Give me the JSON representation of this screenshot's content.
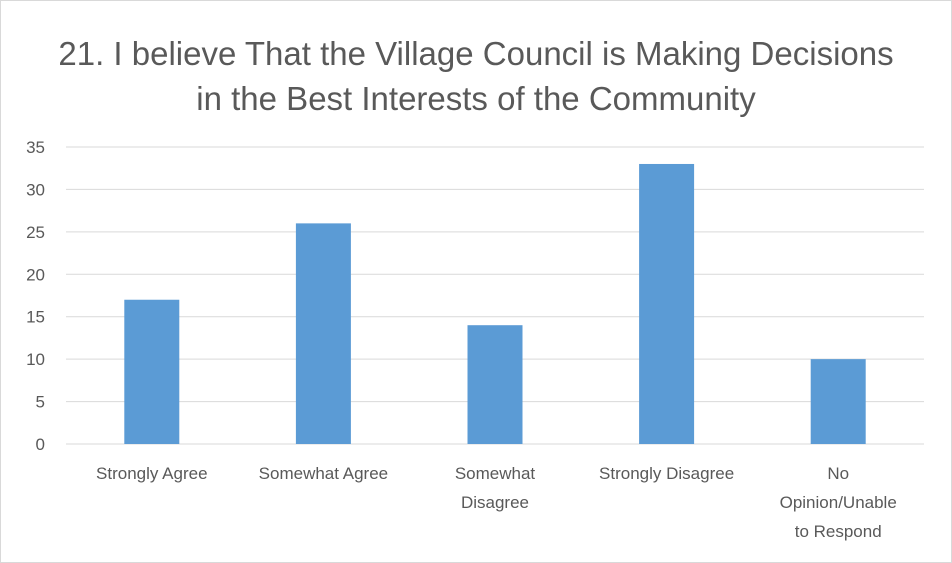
{
  "chart_data": {
    "type": "bar",
    "title": "21. I believe That the Village Council is Making Decisions in the Best Interests of the Community",
    "categories": [
      [
        "Strongly Agree"
      ],
      [
        "Somewhat Agree"
      ],
      [
        "Somewhat",
        "Disagree"
      ],
      [
        "Strongly Disagree"
      ],
      [
        "No",
        "Opinion/Unable",
        "to Respond"
      ]
    ],
    "values": [
      17,
      26,
      14,
      33,
      10
    ],
    "ylim": [
      0,
      35
    ],
    "yticks": [
      "0",
      "5",
      "10",
      "15",
      "20",
      "25",
      "30",
      "35"
    ],
    "grid": true,
    "legend": "none",
    "bar_color": "#5b9bd5",
    "grid_color": "#d9d9d9",
    "text_color": "#595959"
  }
}
